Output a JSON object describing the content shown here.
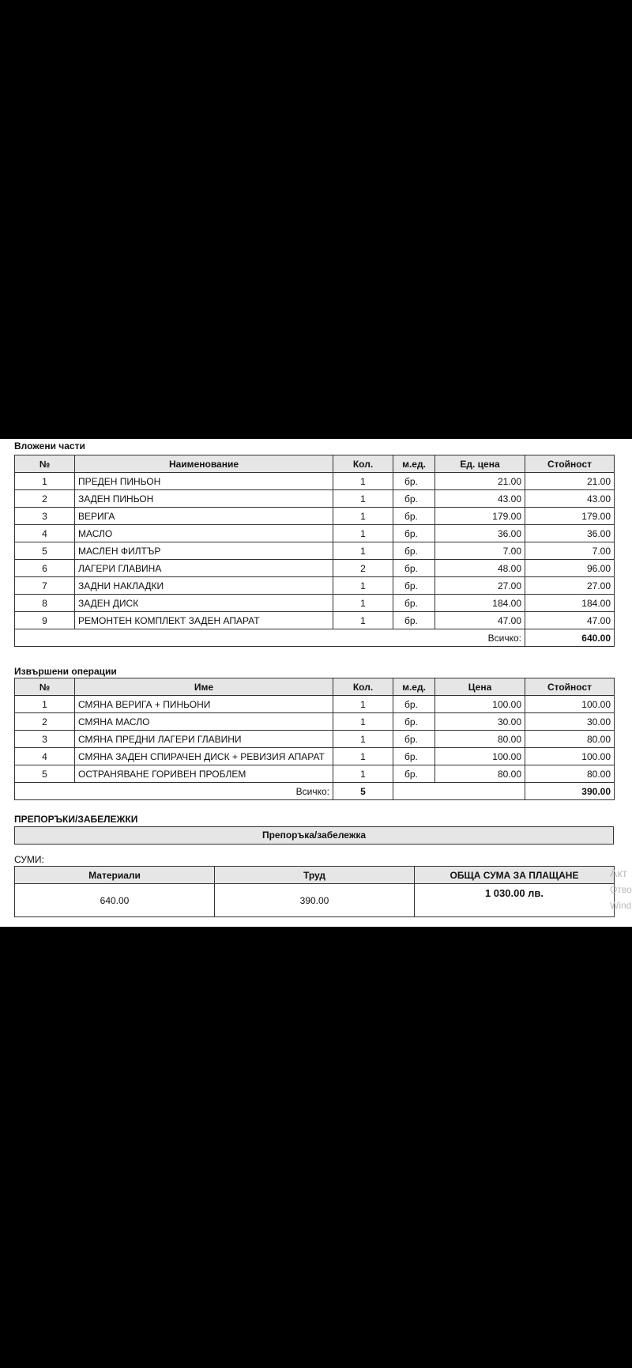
{
  "parts": {
    "title": "Вложени части",
    "headers": [
      "№",
      "Наименование",
      "Кол.",
      "м.ед.",
      "Ед. цена",
      "Стойност"
    ],
    "rows": [
      [
        "1",
        "ПРЕДЕН ПИНЬОН",
        "1",
        "бр.",
        "21.00",
        "21.00"
      ],
      [
        "2",
        "ЗАДЕН ПИНЬОН",
        "1",
        "бр.",
        "43.00",
        "43.00"
      ],
      [
        "3",
        "ВЕРИГА",
        "1",
        "бр.",
        "179.00",
        "179.00"
      ],
      [
        "4",
        "МАСЛО",
        "1",
        "бр.",
        "36.00",
        "36.00"
      ],
      [
        "5",
        "МАСЛЕН ФИЛТЪР",
        "1",
        "бр.",
        "7.00",
        "7.00"
      ],
      [
        "6",
        "ЛАГЕРИ ГЛАВИНА",
        "2",
        "бр.",
        "48.00",
        "96.00"
      ],
      [
        "7",
        "ЗАДНИ НАКЛАДКИ",
        "1",
        "бр.",
        "27.00",
        "27.00"
      ],
      [
        "8",
        "ЗАДЕН ДИСК",
        "1",
        "бр.",
        "184.00",
        "184.00"
      ],
      [
        "9",
        "РЕМОНТЕН КОМПЛЕКТ ЗАДЕН АПАРАТ",
        "1",
        "бр.",
        "47.00",
        "47.00"
      ]
    ],
    "total_label": "Всичко:",
    "total_value": "640.00"
  },
  "operations": {
    "title": "Извършени операции",
    "headers": [
      "№",
      "Име",
      "Кол.",
      "м.ед.",
      "Цена",
      "Стойност"
    ],
    "rows": [
      [
        "1",
        "СМЯНА ВЕРИГА + ПИНЬОНИ",
        "1",
        "бр.",
        "100.00",
        "100.00"
      ],
      [
        "2",
        "СМЯНА МАСЛО",
        "1",
        "бр.",
        "30.00",
        "30.00"
      ],
      [
        "3",
        "СМЯНА ПРЕДНИ ЛАГЕРИ ГЛАВИНИ",
        "1",
        "бр.",
        "80.00",
        "80.00"
      ],
      [
        "4",
        "СМЯНА ЗАДЕН СПИРАЧЕН ДИСК + РЕВИЗИЯ АПАРАТ",
        "1",
        "бр.",
        "100.00",
        "100.00"
      ],
      [
        "5",
        "ОСТРАНЯВАНЕ ГОРИВЕН ПРОБЛЕМ",
        "1",
        "бр.",
        "80.00",
        "80.00"
      ]
    ],
    "total_label": "Всичко:",
    "total_qty": "5",
    "total_value": "390.00"
  },
  "notes": {
    "title": "ПРЕПОРЪКИ/ЗАБЕЛЕЖКИ",
    "header": "Препоръка/забележка"
  },
  "sums": {
    "title": "СУМИ:",
    "headers": [
      "Материали",
      "Труд",
      "ОБЩА СУМА ЗА ПЛАЩАНЕ"
    ],
    "materials": "640.00",
    "labor": "390.00",
    "total": "1 030.00 лв."
  },
  "watermark": [
    "Акт",
    "Отво",
    "Wind"
  ]
}
